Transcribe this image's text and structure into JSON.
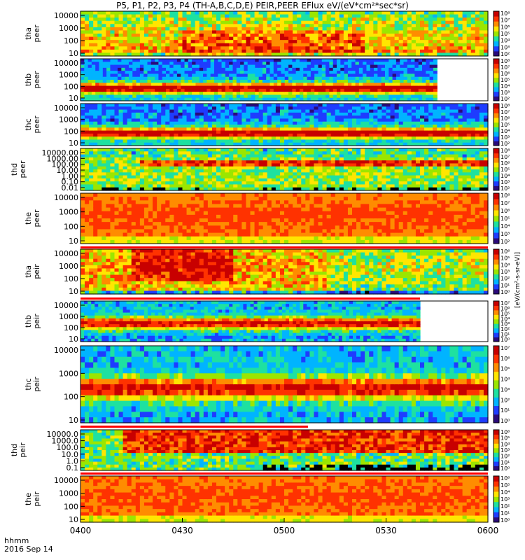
{
  "title": "P5, P1, P2, P3, P4 (TH-A,B,C,D,E) PEIR,PEER EFlux eV/(eV*cm²*sec*sr)",
  "footer": {
    "time_label": "hhmm",
    "date_label": "2016 Sep 14"
  },
  "colorbar_label": "[eV/(cm²-s-sr-eV)]",
  "chart_data": {
    "type": "heatmap",
    "x_tick_labels": [
      "0400",
      "0430",
      "0500",
      "0530",
      "0600"
    ],
    "xlim": [
      "0400",
      "0600"
    ],
    "panels": [
      {
        "probe": "tha",
        "species": "peer",
        "ylabel": [
          "tha",
          "peer"
        ],
        "ylog": true,
        "y_ticks": [
          "10",
          "100",
          "1000",
          "10000"
        ],
        "colorbar_ticks": [
          "10²",
          "10³",
          "10⁴",
          "10⁵",
          "10⁶",
          "10⁷",
          "10⁸"
        ],
        "data_end": "0600",
        "pattern": "hot"
      },
      {
        "probe": "thb",
        "species": "peer",
        "ylabel": [
          "thb",
          "peer"
        ],
        "ylog": true,
        "y_ticks": [
          "10",
          "100",
          "1000",
          "10000"
        ],
        "colorbar_ticks": [
          "10²",
          "10³",
          "10⁴",
          "10⁵",
          "10⁶",
          "10⁷",
          "10⁸"
        ],
        "data_end": "0545",
        "pattern": "bands"
      },
      {
        "probe": "thc",
        "species": "peer",
        "ylabel": [
          "thc",
          "peer"
        ],
        "ylog": true,
        "y_ticks": [
          "10",
          "100",
          "1000",
          "10000"
        ],
        "colorbar_ticks": [
          "10²",
          "10³",
          "10⁴",
          "10⁵",
          "10⁶",
          "10⁷",
          "10⁸"
        ],
        "data_end": "0600",
        "pattern": "bands"
      },
      {
        "probe": "thd",
        "species": "peer",
        "ylabel": [
          "thd",
          "peer"
        ],
        "ylog": true,
        "y_ticks": [
          "0.01",
          "0.10",
          "1.00",
          "10.00",
          "100.00",
          "1000.00",
          "10000.00"
        ],
        "colorbar_ticks": [
          "10²",
          "10³",
          "10⁴",
          "10⁵",
          "10⁶",
          "10⁷",
          "10⁸"
        ],
        "data_end": "0600",
        "pattern": "thd"
      },
      {
        "probe": "the",
        "species": "peer",
        "ylabel": [
          "the",
          "peer"
        ],
        "ylog": true,
        "y_ticks": [
          "10",
          "100",
          "1000",
          "10000"
        ],
        "colorbar_ticks": [
          "10²",
          "10³",
          "10⁴",
          "10⁵",
          "10⁶",
          "10⁷",
          "10⁸"
        ],
        "data_end": "0600",
        "pattern": "warm"
      },
      {
        "probe": "tha",
        "species": "peir",
        "ylabel": [
          "tha",
          "peir"
        ],
        "ylog": true,
        "y_ticks": [
          "10",
          "100",
          "1000",
          "10000"
        ],
        "colorbar_ticks": [
          "10⁰",
          "10¹",
          "10²",
          "10³",
          "10⁴",
          "10⁵",
          "10⁶"
        ],
        "data_end": "0600",
        "pattern": "ionhot"
      },
      {
        "probe": "thb",
        "species": "peir",
        "ylabel": [
          "thb",
          "peir"
        ],
        "ylog": true,
        "y_ticks": [
          "10",
          "100",
          "1000",
          "10000"
        ],
        "colorbar_ticks": [
          "10⁰",
          "10¹",
          "10²",
          "10³",
          "10⁴",
          "10⁵",
          "10⁶",
          "10⁷"
        ],
        "data_end": "0540",
        "pattern": "ionband"
      },
      {
        "probe": "thc",
        "species": "peir",
        "ylabel": [
          "thc",
          "peir"
        ],
        "ylog": true,
        "y_ticks": [
          "10",
          "100",
          "1000",
          "10000"
        ],
        "colorbar_ticks": [
          "10⁰",
          "10¹",
          "10²",
          "10³",
          "10⁴",
          "10⁵",
          "10⁶",
          "10⁷"
        ],
        "data_end": "0600",
        "pattern": "ionband"
      },
      {
        "probe": "thd",
        "species": "peir",
        "ylabel": [
          "thd",
          "peir"
        ],
        "ylog": true,
        "y_ticks": [
          "0.1",
          "1.0",
          "10.0",
          "100.0",
          "1000.0",
          "10000.0"
        ],
        "colorbar_ticks": [
          "10⁰",
          "10¹",
          "10²",
          "10³",
          "10⁴",
          "10⁵",
          "10⁶"
        ],
        "data_end": "0600",
        "pattern": "thdion"
      },
      {
        "probe": "the",
        "species": "peir",
        "ylabel": [
          "the",
          "peir"
        ],
        "ylog": true,
        "y_ticks": [
          "10",
          "100",
          "1000",
          "10000"
        ],
        "colorbar_ticks": [
          "10⁰",
          "10¹",
          "10²",
          "10³",
          "10⁴",
          "10⁵",
          "10⁶"
        ],
        "data_end": "0600",
        "pattern": "warm"
      }
    ],
    "colors": {
      "scale": [
        "#2a0a7a",
        "#1e3cff",
        "#00b4ff",
        "#1ee1a0",
        "#9be600",
        "#ffe600",
        "#ff8c00",
        "#ff3200",
        "#c80000"
      ],
      "saturated": "#000000",
      "divider_red": "#ff0000"
    }
  }
}
